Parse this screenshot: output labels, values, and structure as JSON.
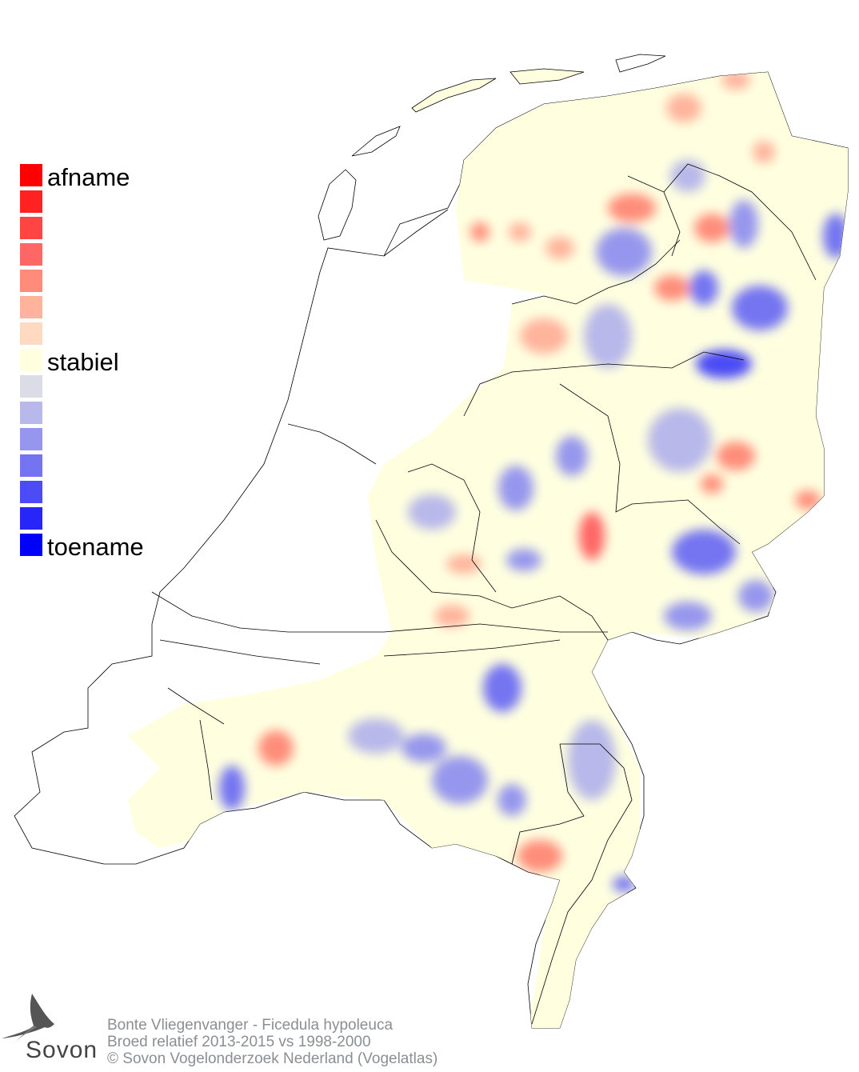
{
  "legend": {
    "labels": {
      "top": "afname",
      "middle": "stabiel",
      "bottom": "toename"
    },
    "colors": [
      "#ff0000",
      "#ff2222",
      "#ff4444",
      "#ff6666",
      "#ff8c7a",
      "#ffb39c",
      "#ffd9c0",
      "#ffffe0",
      "#dcdce6",
      "#b8b8ea",
      "#9696ee",
      "#7474f2",
      "#4c4cf6",
      "#2626fa",
      "#0000ff"
    ]
  },
  "footer": {
    "line1": "Bonte Vliegenvanger - Ficedula hypoleuca",
    "line2": "Broed relatief 2013-2015 vs 1998-2000",
    "line3": "© Sovon Vogelonderzoek Nederland (Vogelatlas)"
  },
  "logo": {
    "text": "Sovon"
  }
}
